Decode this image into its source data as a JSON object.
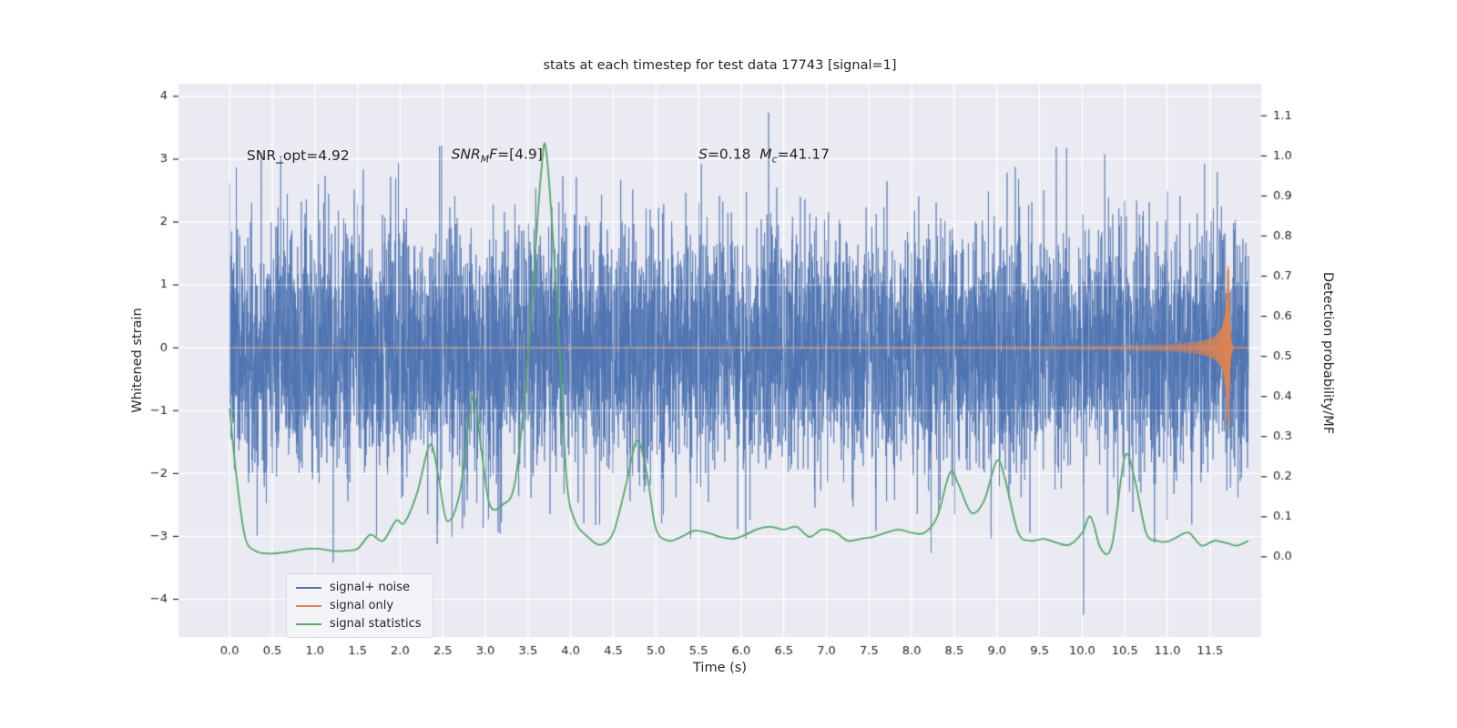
{
  "chart_data": {
    "type": "line",
    "title": "stats at each timestep for test data 17743 [signal=1]",
    "xlabel": "Time (s)",
    "ylabel_left": "Whitened strain",
    "ylabel_right": "Detection probability/MF",
    "xlim": [
      -0.6,
      12.1
    ],
    "ylim_left": [
      -4.6,
      4.2
    ],
    "ylim_right": [
      -0.2,
      1.18
    ],
    "grid": true,
    "xticks": [
      0,
      0.5,
      1,
      1.5,
      2,
      2.5,
      3,
      3.5,
      4,
      4.5,
      5,
      5.5,
      6,
      6.5,
      7,
      7.5,
      8,
      8.5,
      9,
      9.5,
      10,
      10.5,
      11,
      11.5
    ],
    "yticks_left": [
      -4,
      -3,
      -2,
      -1,
      0,
      1,
      2,
      3,
      4
    ],
    "yticks_right": [
      0,
      0.1,
      0.2,
      0.3,
      0.4,
      0.5,
      0.6,
      0.7,
      0.8,
      0.9,
      1,
      1.1
    ],
    "colors": {
      "panel": "#eaeaf2",
      "grid": "#ffffff",
      "text": "#262626",
      "figure": "#ffffff"
    },
    "series": [
      {
        "name": "signal+ noise",
        "axis": "left",
        "type": "noise",
        "color": "#4c72b0",
        "alpha": 0.7,
        "t_range": [
          0,
          11.95
        ],
        "n": 7000,
        "std": 0.95,
        "clip": [
          -4.25,
          4.15
        ],
        "seed": 7
      },
      {
        "name": "signal only",
        "axis": "left",
        "type": "chirp",
        "color": "#dd8452",
        "t_range": [
          0,
          11.95
        ],
        "tc": 11.72,
        "base_amp": 0.015,
        "amp_coef": 0.035,
        "amp_pow": -0.9,
        "max_amp": 1.3,
        "f_coef": 30,
        "f_pow": -0.375,
        "ringdown_tau": 0.012,
        "ringdown_f": 250
      },
      {
        "name": "signal statistics",
        "axis": "right",
        "type": "keypoints",
        "color": "#55a868",
        "points": [
          [
            0,
            0.37
          ],
          [
            0.08,
            0.2
          ],
          [
            0.18,
            0.05
          ],
          [
            0.3,
            0.015
          ],
          [
            0.45,
            0.008
          ],
          [
            0.6,
            0.01
          ],
          [
            0.75,
            0.015
          ],
          [
            0.9,
            0.02
          ],
          [
            1.05,
            0.02
          ],
          [
            1.2,
            0.015
          ],
          [
            1.35,
            0.015
          ],
          [
            1.5,
            0.02
          ],
          [
            1.65,
            0.055
          ],
          [
            1.8,
            0.04
          ],
          [
            1.95,
            0.09
          ],
          [
            2.05,
            0.085
          ],
          [
            2.2,
            0.16
          ],
          [
            2.35,
            0.28
          ],
          [
            2.45,
            0.2
          ],
          [
            2.55,
            0.09
          ],
          [
            2.7,
            0.16
          ],
          [
            2.85,
            0.4
          ],
          [
            2.95,
            0.27
          ],
          [
            3.05,
            0.13
          ],
          [
            3.2,
            0.13
          ],
          [
            3.35,
            0.19
          ],
          [
            3.5,
            0.5
          ],
          [
            3.65,
            0.95
          ],
          [
            3.72,
            1.0
          ],
          [
            3.85,
            0.6
          ],
          [
            3.95,
            0.2
          ],
          [
            4.05,
            0.09
          ],
          [
            4.2,
            0.05
          ],
          [
            4.35,
            0.03
          ],
          [
            4.5,
            0.06
          ],
          [
            4.65,
            0.18
          ],
          [
            4.78,
            0.29
          ],
          [
            4.9,
            0.2
          ],
          [
            5.0,
            0.07
          ],
          [
            5.15,
            0.04
          ],
          [
            5.3,
            0.05
          ],
          [
            5.45,
            0.065
          ],
          [
            5.6,
            0.06
          ],
          [
            5.75,
            0.05
          ],
          [
            5.9,
            0.045
          ],
          [
            6.05,
            0.055
          ],
          [
            6.2,
            0.07
          ],
          [
            6.35,
            0.075
          ],
          [
            6.5,
            0.068
          ],
          [
            6.65,
            0.075
          ],
          [
            6.8,
            0.05
          ],
          [
            6.95,
            0.068
          ],
          [
            7.1,
            0.062
          ],
          [
            7.25,
            0.04
          ],
          [
            7.4,
            0.045
          ],
          [
            7.55,
            0.05
          ],
          [
            7.7,
            0.06
          ],
          [
            7.85,
            0.068
          ],
          [
            8.0,
            0.06
          ],
          [
            8.15,
            0.06
          ],
          [
            8.3,
            0.1
          ],
          [
            8.45,
            0.21
          ],
          [
            8.55,
            0.18
          ],
          [
            8.7,
            0.11
          ],
          [
            8.85,
            0.14
          ],
          [
            9.0,
            0.24
          ],
          [
            9.1,
            0.19
          ],
          [
            9.25,
            0.06
          ],
          [
            9.4,
            0.04
          ],
          [
            9.55,
            0.045
          ],
          [
            9.7,
            0.035
          ],
          [
            9.85,
            0.03
          ],
          [
            10.0,
            0.06
          ],
          [
            10.1,
            0.1
          ],
          [
            10.22,
            0.02
          ],
          [
            10.35,
            0.03
          ],
          [
            10.5,
            0.25
          ],
          [
            10.62,
            0.19
          ],
          [
            10.75,
            0.06
          ],
          [
            10.88,
            0.04
          ],
          [
            11.0,
            0.038
          ],
          [
            11.12,
            0.05
          ],
          [
            11.25,
            0.06
          ],
          [
            11.4,
            0.028
          ],
          [
            11.55,
            0.04
          ],
          [
            11.7,
            0.034
          ],
          [
            11.82,
            0.028
          ],
          [
            11.95,
            0.04
          ]
        ]
      }
    ],
    "legend": {
      "position": "lower left",
      "labels": [
        "signal+ noise",
        "signal only",
        "signal statistics"
      ]
    },
    "annotations": [
      {
        "x": 0.2,
        "y": 3.05,
        "parts": [
          {
            "text": "SNR_opt=4.92",
            "style": ""
          }
        ]
      },
      {
        "x": 2.6,
        "y": 3.05,
        "parts": [
          {
            "text": "SNR",
            "style": "i"
          },
          {
            "text": "M",
            "style": "isub"
          },
          {
            "text": "F",
            "style": "i"
          },
          {
            "text": "=[4.9]",
            "style": ""
          }
        ]
      },
      {
        "x": 5.5,
        "y": 3.05,
        "parts": [
          {
            "text": "S",
            "style": "i"
          },
          {
            "text": "=0.18  ",
            "style": ""
          },
          {
            "text": "M",
            "style": "i"
          },
          {
            "text": "c",
            "style": "isub"
          },
          {
            "text": "=41.17",
            "style": ""
          }
        ]
      }
    ]
  }
}
